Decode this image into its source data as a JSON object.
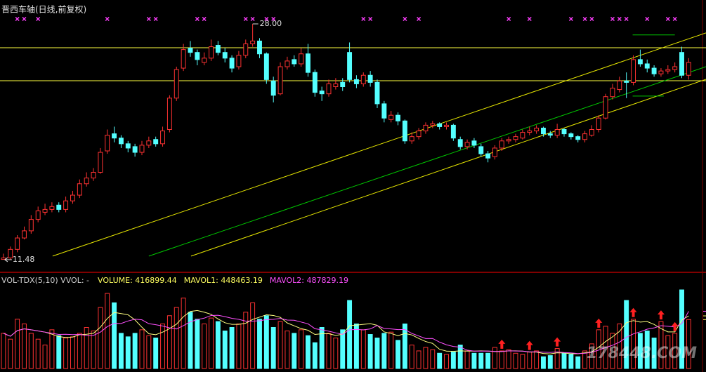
{
  "chart_data": {
    "type": "candlestick",
    "title": "晋西车轴(日线,前复权)",
    "xlim": [
      -0.5,
      101.5
    ],
    "ylim": [
      10.74,
      28.69
    ],
    "vlim": [
      0,
      700000
    ],
    "up_color": "#ff3232",
    "down_color": "#54ffff",
    "candles": [
      [
        11.5,
        11.9,
        11.48,
        11.6
      ],
      [
        11.6,
        12.4,
        11.5,
        12.2
      ],
      [
        12.2,
        13.2,
        12.0,
        13.0
      ],
      [
        13.0,
        13.8,
        12.9,
        13.5
      ],
      [
        13.5,
        14.6,
        13.3,
        14.3
      ],
      [
        14.3,
        15.2,
        14.1,
        14.9
      ],
      [
        14.8,
        15.4,
        14.6,
        15.0
      ],
      [
        15.0,
        15.5,
        14.8,
        15.2
      ],
      [
        15.3,
        15.5,
        14.8,
        15.0
      ],
      [
        15.0,
        15.9,
        14.8,
        15.6
      ],
      [
        15.6,
        16.3,
        15.4,
        16.0
      ],
      [
        16.0,
        17.1,
        15.8,
        16.8
      ],
      [
        16.8,
        17.6,
        16.6,
        17.2
      ],
      [
        17.2,
        17.9,
        17.0,
        17.6
      ],
      [
        17.6,
        19.3,
        17.5,
        19.0
      ],
      [
        19.1,
        20.6,
        18.9,
        20.2
      ],
      [
        20.3,
        20.8,
        19.7,
        20.0
      ],
      [
        20.0,
        20.2,
        19.3,
        19.6
      ],
      [
        19.6,
        19.8,
        19.0,
        19.3
      ],
      [
        19.4,
        19.6,
        18.7,
        19.0
      ],
      [
        19.0,
        19.8,
        18.8,
        19.5
      ],
      [
        19.5,
        20.1,
        19.3,
        19.8
      ],
      [
        19.9,
        20.1,
        19.4,
        19.6
      ],
      [
        19.6,
        20.8,
        19.4,
        20.5
      ],
      [
        20.6,
        23.0,
        20.4,
        22.8
      ],
      [
        22.8,
        25.0,
        22.6,
        24.8
      ],
      [
        24.9,
        26.6,
        24.7,
        26.2
      ],
      [
        26.3,
        26.8,
        25.7,
        26.0
      ],
      [
        26.0,
        26.2,
        25.1,
        25.5
      ],
      [
        25.3,
        26.0,
        25.1,
        25.6
      ],
      [
        25.6,
        26.9,
        25.4,
        26.4
      ],
      [
        26.5,
        26.8,
        25.8,
        26.0
      ],
      [
        26.0,
        26.3,
        25.3,
        25.6
      ],
      [
        25.6,
        25.8,
        24.6,
        24.9
      ],
      [
        25.0,
        26.1,
        24.8,
        25.8
      ],
      [
        25.8,
        26.9,
        25.6,
        26.6
      ],
      [
        26.6,
        28.0,
        26.4,
        26.8
      ],
      [
        26.8,
        27.0,
        25.6,
        25.9
      ],
      [
        25.9,
        26.0,
        23.8,
        24.1
      ],
      [
        24.0,
        24.3,
        22.5,
        23.0
      ],
      [
        23.1,
        25.3,
        23.0,
        25.0
      ],
      [
        25.0,
        25.7,
        24.8,
        25.4
      ],
      [
        25.5,
        25.8,
        25.0,
        25.2
      ],
      [
        25.2,
        26.3,
        25.0,
        25.9
      ],
      [
        25.9,
        26.6,
        24.3,
        24.6
      ],
      [
        24.6,
        24.8,
        22.9,
        23.2
      ],
      [
        23.3,
        23.6,
        22.6,
        23.1
      ],
      [
        23.1,
        24.1,
        22.9,
        23.8
      ],
      [
        23.6,
        24.2,
        23.4,
        23.8
      ],
      [
        23.9,
        24.2,
        23.3,
        23.6
      ],
      [
        26.0,
        26.7,
        23.9,
        24.1
      ],
      [
        24.1,
        24.4,
        23.5,
        23.8
      ],
      [
        23.8,
        24.6,
        23.6,
        24.4
      ],
      [
        24.4,
        24.7,
        23.6,
        23.9
      ],
      [
        23.9,
        24.1,
        22.1,
        22.4
      ],
      [
        22.4,
        22.6,
        21.1,
        21.4
      ],
      [
        21.3,
        21.9,
        21.1,
        21.6
      ],
      [
        21.6,
        21.8,
        20.9,
        21.2
      ],
      [
        21.2,
        21.3,
        19.6,
        19.8
      ],
      [
        19.8,
        20.4,
        19.6,
        20.1
      ],
      [
        20.1,
        20.7,
        19.9,
        20.5
      ],
      [
        20.5,
        21.1,
        20.3,
        20.9
      ],
      [
        20.9,
        21.2,
        20.7,
        21.0
      ],
      [
        21.0,
        21.1,
        20.6,
        20.8
      ],
      [
        20.8,
        21.1,
        20.6,
        20.9
      ],
      [
        20.9,
        21.0,
        19.8,
        20.0
      ],
      [
        19.9,
        20.1,
        19.2,
        19.4
      ],
      [
        19.4,
        19.9,
        19.2,
        19.7
      ],
      [
        19.8,
        20.0,
        19.3,
        19.5
      ],
      [
        19.4,
        19.6,
        18.7,
        18.9
      ],
      [
        18.9,
        19.1,
        18.3,
        18.6
      ],
      [
        18.7,
        19.5,
        18.5,
        19.3
      ],
      [
        19.3,
        20.0,
        19.1,
        19.8
      ],
      [
        19.8,
        20.1,
        19.6,
        19.9
      ],
      [
        19.9,
        20.3,
        19.7,
        20.1
      ],
      [
        20.0,
        20.6,
        19.9,
        20.4
      ],
      [
        20.4,
        20.8,
        20.2,
        20.5
      ],
      [
        20.5,
        20.9,
        20.3,
        20.7
      ],
      [
        20.7,
        20.8,
        20.1,
        20.3
      ],
      [
        20.3,
        20.5,
        20.0,
        20.2
      ],
      [
        20.2,
        21.0,
        20.0,
        20.6
      ],
      [
        20.6,
        20.7,
        20.1,
        20.3
      ],
      [
        20.3,
        20.4,
        19.9,
        20.1
      ],
      [
        20.1,
        20.2,
        19.7,
        19.9
      ],
      [
        19.9,
        20.5,
        19.7,
        20.3
      ],
      [
        20.2,
        20.9,
        20.1,
        20.6
      ],
      [
        20.6,
        21.6,
        20.4,
        21.4
      ],
      [
        21.4,
        23.1,
        21.3,
        22.9
      ],
      [
        22.9,
        23.8,
        22.7,
        23.5
      ],
      [
        23.4,
        24.3,
        23.2,
        24.0
      ],
      [
        24.0,
        24.6,
        22.8,
        23.9
      ],
      [
        23.9,
        25.8,
        23.7,
        25.5
      ],
      [
        25.5,
        26.2,
        25.0,
        25.2
      ],
      [
        25.2,
        25.5,
        24.6,
        24.9
      ],
      [
        24.9,
        25.1,
        24.3,
        24.5
      ],
      [
        24.5,
        24.9,
        24.3,
        24.7
      ],
      [
        24.7,
        25.1,
        24.5,
        24.8
      ],
      [
        24.8,
        25.3,
        24.6,
        25.0
      ],
      [
        26.0,
        26.4,
        24.2,
        24.4
      ],
      [
        24.4,
        25.6,
        24.1,
        25.3
      ]
    ],
    "volume": [
      300000,
      250000,
      420000,
      380000,
      300000,
      250000,
      200000,
      330000,
      280000,
      260000,
      270000,
      300000,
      350000,
      320000,
      520000,
      640000,
      560000,
      300000,
      270000,
      300000,
      330000,
      280000,
      260000,
      380000,
      450000,
      520000,
      600000,
      480000,
      420000,
      380000,
      430000,
      400000,
      320000,
      350000,
      380000,
      480000,
      560000,
      420000,
      450000,
      350000,
      400000,
      320000,
      300000,
      330000,
      280000,
      220000,
      350000,
      300000,
      260000,
      330000,
      580000,
      380000,
      330000,
      290000,
      260000,
      300000,
      310000,
      240000,
      380000,
      200000,
      150000,
      180000,
      160000,
      130000,
      120000,
      140000,
      200000,
      150000,
      130000,
      130000,
      130000,
      180000,
      150000,
      160000,
      130000,
      120000,
      140000,
      150000,
      100000,
      110000,
      170000,
      130000,
      120000,
      100000,
      150000,
      210000,
      330000,
      360000,
      300000,
      380000,
      580000,
      420000,
      300000,
      320000,
      260000,
      400000,
      280000,
      300000,
      670000,
      416899.44
    ],
    "mavol1": [
      300000,
      275000,
      323000,
      338000,
      330000,
      320000,
      310000,
      292000,
      272000,
      264000,
      268000,
      288000,
      292000,
      300000,
      352000,
      426000,
      478000,
      468000,
      458000,
      414000,
      352000,
      296000,
      288000,
      310000,
      340000,
      378000,
      442000,
      486000,
      494000,
      480000,
      462000,
      422000,
      390000,
      376000,
      376000,
      386000,
      418000,
      438000,
      458000,
      452000,
      436000,
      388000,
      364000,
      340000,
      326000,
      290000,
      296000,
      296000,
      282000,
      292000,
      364000,
      370000,
      376000,
      382000,
      368000,
      312000,
      298000,
      280000,
      298000,
      286000,
      256000,
      230000,
      214000,
      164000,
      148000,
      146000,
      150000,
      148000,
      148000,
      150000,
      148000,
      144000,
      144000,
      150000,
      150000,
      148000,
      140000,
      140000,
      128000,
      124000,
      134000,
      132000,
      126000,
      126000,
      134000,
      142000,
      182000,
      230000,
      270000,
      316000,
      390000,
      408000,
      396000,
      400000,
      376000,
      340000,
      312000,
      312000,
      413000,
      448463.19
    ],
    "mavol2": [
      300000,
      275000,
      323000,
      338000,
      330000,
      320000,
      310000,
      300000,
      290000,
      292000,
      289000,
      290000,
      282000,
      282000,
      310000,
      357000,
      385000,
      384000,
      405000,
      420000,
      415000,
      382000,
      373000,
      362000,
      346000,
      337000,
      365000,
      398000,
      417000,
      429000,
      452000,
      454000,
      442000,
      428000,
      419000,
      404000,
      404000,
      407000,
      417000,
      419000,
      427000,
      413000,
      411000,
      396000,
      381000,
      339000,
      330000,
      318000,
      304000,
      291000,
      330000,
      333000,
      329000,
      337000,
      366000,
      341000,
      337000,
      331000,
      333000,
      299000,
      277000,
      255000,
      256000,
      225000,
      202000,
      188000,
      182000,
      156000,
      148000,
      148000,
      149000,
      146000,
      146000,
      150000,
      149000,
      148000,
      142000,
      142000,
      139000,
      137000,
      141000,
      136000,
      133000,
      127000,
      129000,
      138000,
      157000,
      178000,
      198000,
      225000,
      266000,
      295000,
      313000,
      335000,
      346000,
      365000,
      360000,
      354000,
      382000,
      487829.19
    ],
    "mavol1_color": "#ffff80",
    "mavol2_color": "#ff50ff",
    "hlines": [
      {
        "value": 26.33,
        "color": "#ffff40"
      },
      {
        "value": 24.02,
        "color": "#ffff40"
      }
    ],
    "trendlines": [
      {
        "color": "#e6e600",
        "points": [
          [
            7.1,
            11.73
          ],
          [
            101.5,
            27.37
          ]
        ]
      },
      {
        "color": "#00c800",
        "points": [
          [
            21.0,
            11.73
          ],
          [
            101.5,
            25.0
          ]
        ]
      },
      {
        "color": "#e6e600",
        "points": [
          [
            27.1,
            11.73
          ],
          [
            101.5,
            24.12
          ]
        ]
      },
      {
        "color": "#00c800",
        "points": [
          [
            90.9,
            27.23
          ],
          [
            97.0,
            27.23
          ]
        ]
      },
      {
        "color": "#00c800",
        "points": [
          [
            90.9,
            22.94
          ],
          [
            95.4,
            22.94
          ]
        ]
      }
    ],
    "price_marks": [
      {
        "value": 28.0,
        "label": "28.00"
      },
      {
        "value": 11.48,
        "label": "11.48"
      }
    ],
    "signals": [
      2,
      3,
      5,
      15,
      21,
      22,
      28,
      29,
      35,
      36,
      38,
      39,
      52,
      53,
      58,
      60,
      73,
      76,
      82,
      84,
      85,
      88,
      89,
      90,
      93,
      96,
      97
    ],
    "signal_color": "#ff40ff",
    "volume_arrows": [
      72,
      76,
      80,
      86,
      91,
      95,
      97
    ],
    "vol_header": "VOL-TDX(5,10) VVOL: -",
    "readouts": [
      {
        "label": "VOLUME: 416899.44",
        "value": 416899.44,
        "color": "#ffff60"
      },
      {
        "label": "MAVOL1: 448463.19",
        "value": 448463.19,
        "color": "#ffff60"
      },
      {
        "label": "MAVOL2: 487829.19",
        "value": 487829.19,
        "color": "#ff50ff"
      }
    ],
    "watermark": "178448.COM"
  }
}
